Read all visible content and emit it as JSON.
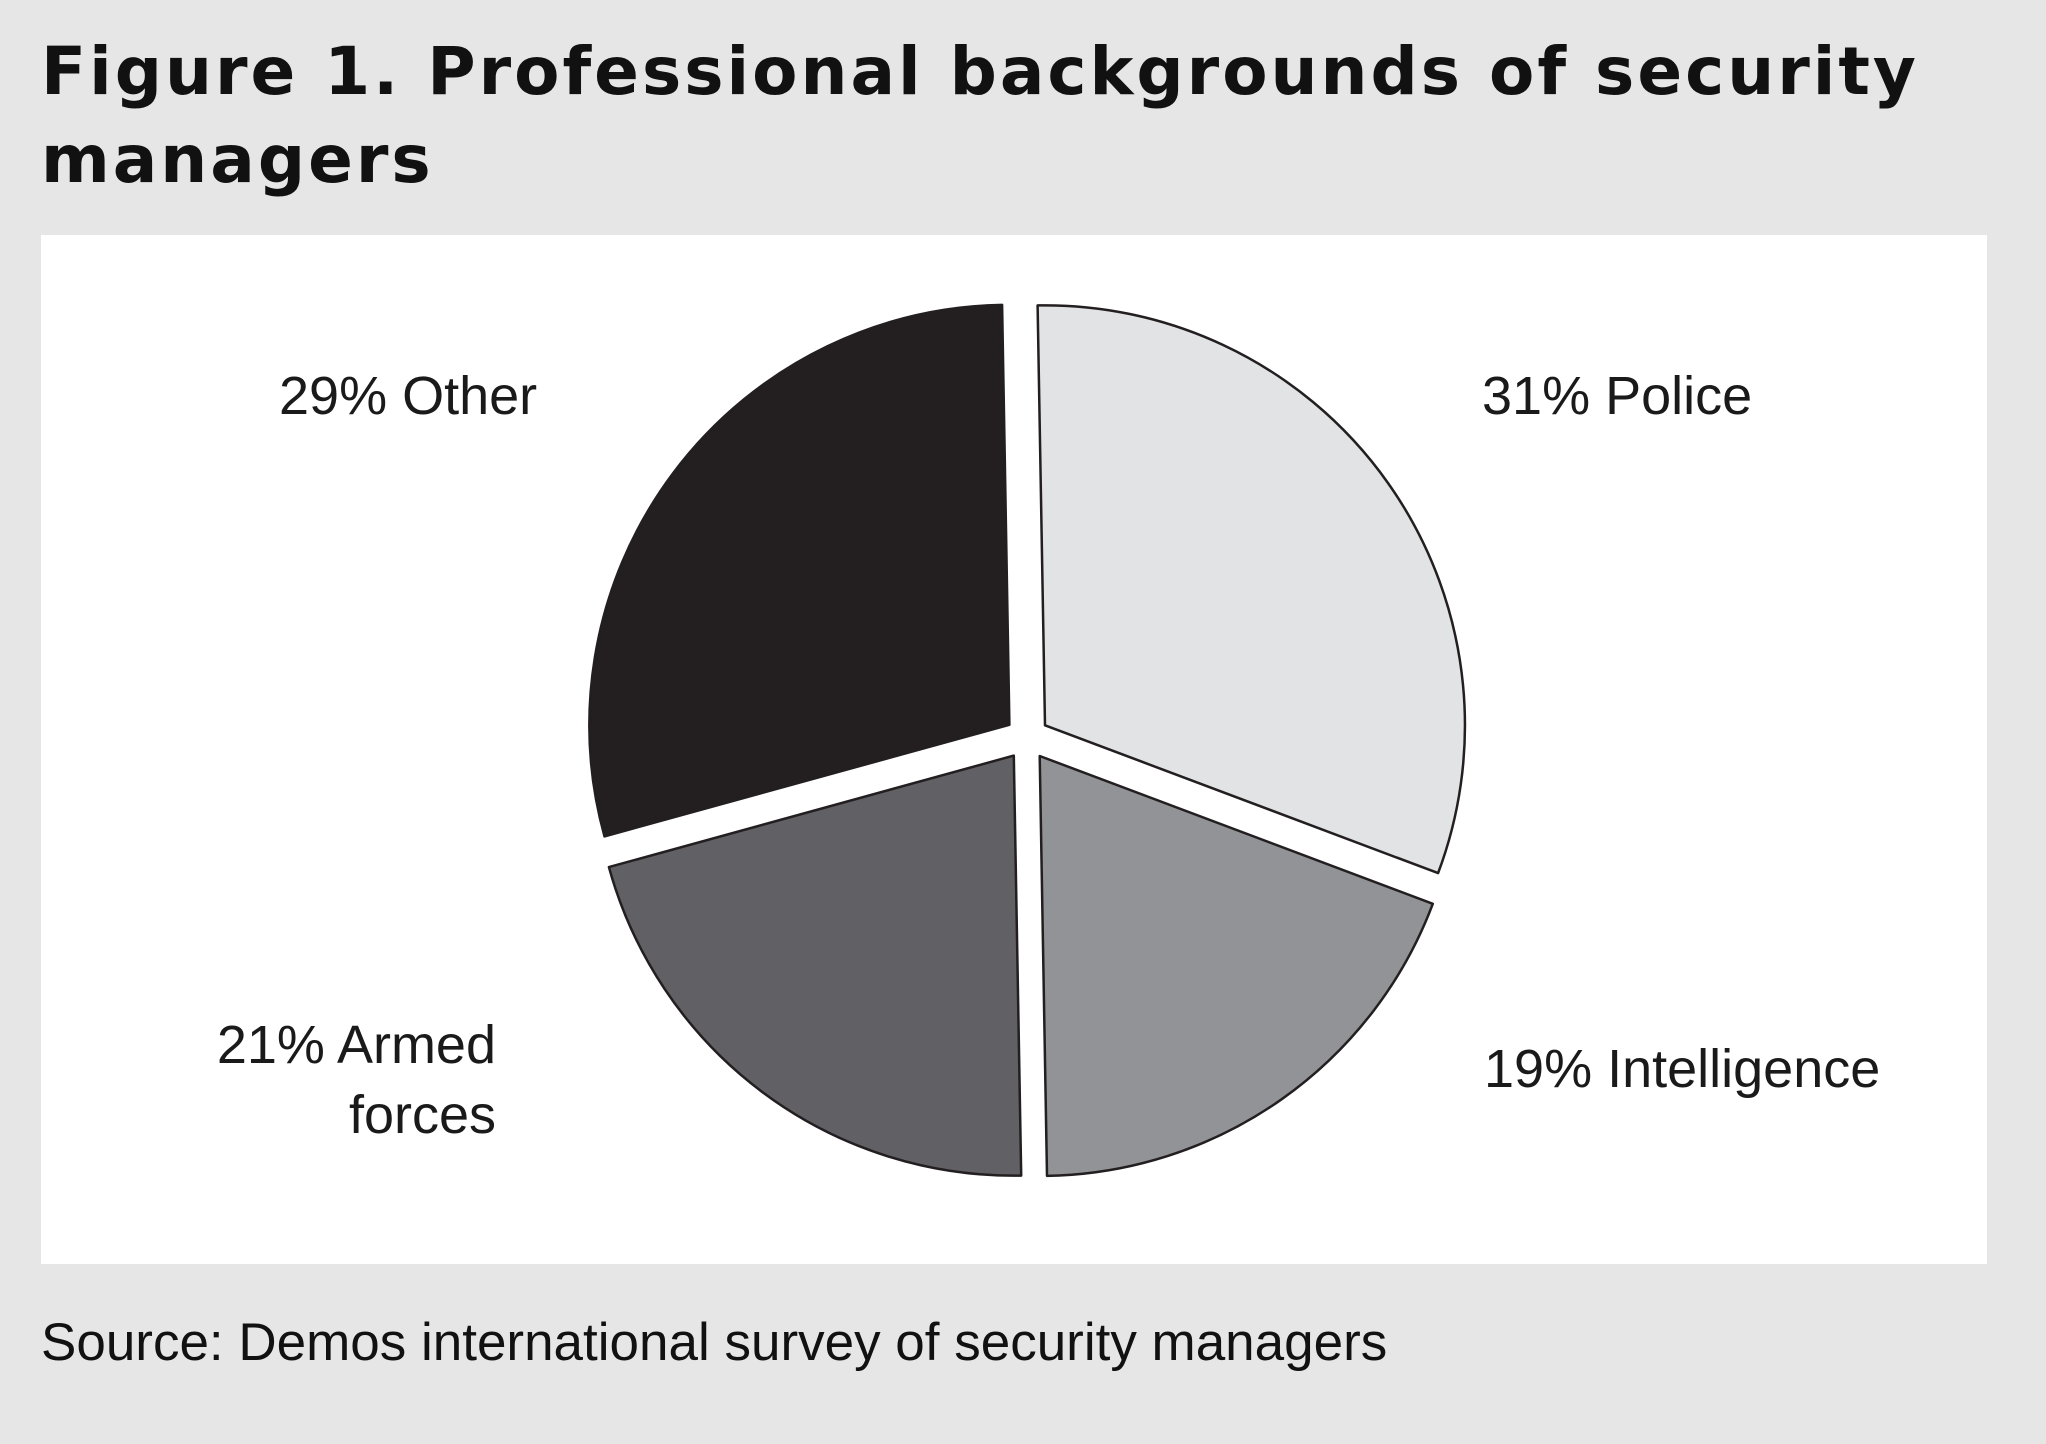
{
  "figure": {
    "title": "Figure 1. Professional backgrounds of security managers",
    "source": "Source: Demos international survey of security managers"
  },
  "chart_data": {
    "type": "pie",
    "unit": "%",
    "slices": [
      {
        "label": "31% Police",
        "category": "Police",
        "value": 31,
        "color": "#e2e3e5"
      },
      {
        "label": "19% Intelligence",
        "category": "Intelligence",
        "value": 19,
        "color": "#929396"
      },
      {
        "label": "21% Armed forces",
        "category": "Armed forces",
        "value": 21,
        "color": "#616065"
      },
      {
        "label": "29% Other",
        "category": "Other",
        "value": 29,
        "color": "#231f20"
      }
    ]
  }
}
